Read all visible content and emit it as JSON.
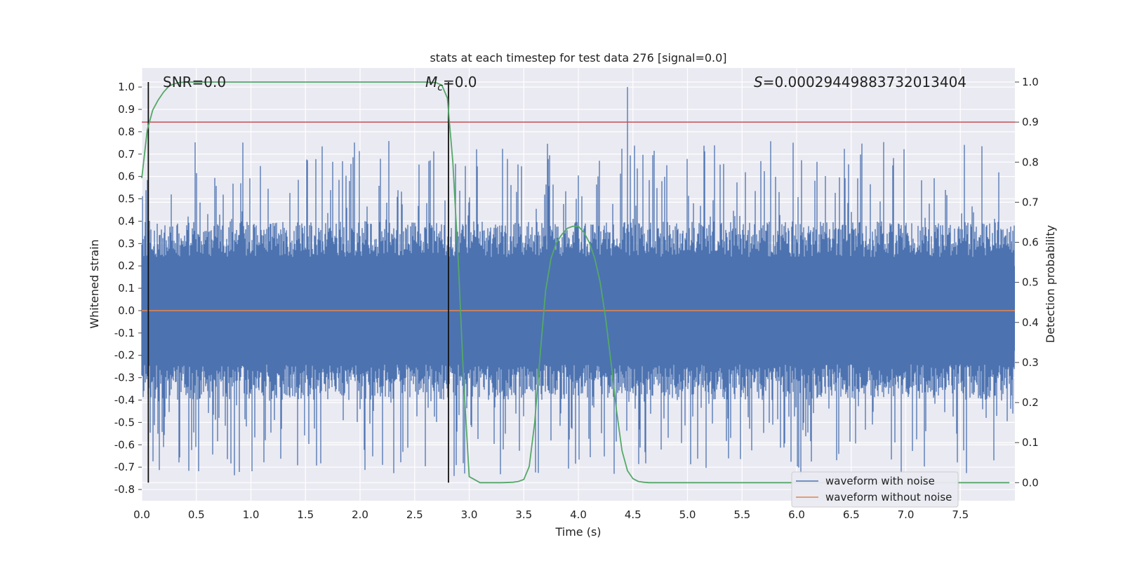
{
  "chart_data": {
    "type": "line",
    "title": "stats at each timestep for test data 276 [signal=0.0]",
    "xlabel": "Time (s)",
    "ylabel": "Whitened strain",
    "y2label": "Detection probability",
    "xlim": [
      0.0,
      8.0
    ],
    "ylim": [
      -0.85,
      1.085
    ],
    "y2lim": [
      -0.045,
      1.035
    ],
    "x_ticks": [
      0.0,
      0.5,
      1.0,
      1.5,
      2.0,
      2.5,
      3.0,
      3.5,
      4.0,
      4.5,
      5.0,
      5.5,
      6.0,
      6.5,
      7.0,
      7.5
    ],
    "x_tick_labels": [
      "0.0",
      "0.5",
      "1.0",
      "1.5",
      "2.0",
      "2.5",
      "3.0",
      "3.5",
      "4.0",
      "4.5",
      "5.0",
      "5.5",
      "6.0",
      "6.5",
      "7.0",
      "7.5"
    ],
    "y_ticks": [
      -0.8,
      -0.7,
      -0.6,
      -0.5,
      -0.4,
      -0.3,
      -0.2,
      -0.1,
      0.0,
      0.1,
      0.2,
      0.3,
      0.4,
      0.5,
      0.6,
      0.7,
      0.8,
      0.9,
      1.0
    ],
    "y_tick_labels": [
      "-0.8",
      "-0.7",
      "-0.6",
      "-0.5",
      "-0.4",
      "-0.3",
      "-0.2",
      "-0.1",
      "0.0",
      "0.1",
      "0.2",
      "0.3",
      "0.4",
      "0.5",
      "0.6",
      "0.7",
      "0.8",
      "0.9",
      "1.0"
    ],
    "y2_ticks": [
      0.0,
      0.1,
      0.2,
      0.3,
      0.4,
      0.5,
      0.6,
      0.7,
      0.8,
      0.9,
      1.0
    ],
    "y2_tick_labels": [
      "0.0",
      "0.1",
      "0.2",
      "0.3",
      "0.4",
      "0.5",
      "0.6",
      "0.7",
      "0.8",
      "0.9",
      "1.0"
    ],
    "grid": true,
    "legend_position": "bottom-right",
    "annotations": {
      "snr": "SNR=0.0",
      "mc_prefix": "M",
      "mc_sub": "c",
      "mc_suffix": "=0.0",
      "s_prefix": "S",
      "s_suffix": "=0.00029449883732013404"
    },
    "vertical_markers": [
      0.06,
      2.81
    ],
    "threshold_line": {
      "axis": "right",
      "value": 0.9,
      "color": "#c44e52"
    },
    "noise_envelope": {
      "upper": 0.45,
      "lower": -0.46,
      "min_peak": -0.77,
      "max_peak": 1.0,
      "max_peak_x": 4.45
    },
    "series": [
      {
        "name": "waveform with noise",
        "color": "#4c72b0",
        "axis": "left"
      },
      {
        "name": "waveform without noise",
        "color": "#dd8452",
        "axis": "left",
        "x": [
          0.0,
          8.0
        ],
        "y": [
          0.0,
          0.0
        ]
      },
      {
        "name": "detection probability",
        "color": "#55a868",
        "axis": "right",
        "x": [
          0.0,
          0.05,
          0.1,
          0.15,
          0.2,
          0.25,
          0.3,
          0.35,
          0.4,
          0.5,
          1.0,
          1.5,
          2.0,
          2.5,
          2.6,
          2.7,
          2.75,
          2.8,
          2.85,
          2.9,
          2.95,
          3.0,
          3.1,
          3.2,
          3.3,
          3.4,
          3.45,
          3.5,
          3.55,
          3.6,
          3.65,
          3.7,
          3.75,
          3.8,
          3.85,
          3.9,
          3.95,
          4.0,
          4.05,
          4.1,
          4.15,
          4.2,
          4.25,
          4.3,
          4.35,
          4.4,
          4.45,
          4.5,
          4.55,
          4.6,
          4.65,
          4.7,
          4.8,
          5.0,
          5.5,
          6.0,
          6.5,
          7.0,
          7.5,
          7.95
        ],
        "y": [
          0.76,
          0.88,
          0.93,
          0.955,
          0.975,
          0.99,
          0.996,
          0.999,
          1.0,
          1.0,
          1.0,
          1.0,
          1.0,
          1.0,
          1.0,
          0.998,
          0.992,
          0.96,
          0.8,
          0.55,
          0.25,
          0.015,
          0.0,
          0.0,
          0.0,
          0.001,
          0.003,
          0.008,
          0.04,
          0.15,
          0.32,
          0.48,
          0.56,
          0.6,
          0.62,
          0.635,
          0.64,
          0.64,
          0.625,
          0.6,
          0.56,
          0.5,
          0.41,
          0.3,
          0.18,
          0.08,
          0.03,
          0.01,
          0.003,
          0.001,
          0.0,
          0.0,
          0.0,
          0.0,
          0.0,
          0.0,
          0.0,
          0.0,
          0.0,
          0.0
        ]
      }
    ]
  }
}
